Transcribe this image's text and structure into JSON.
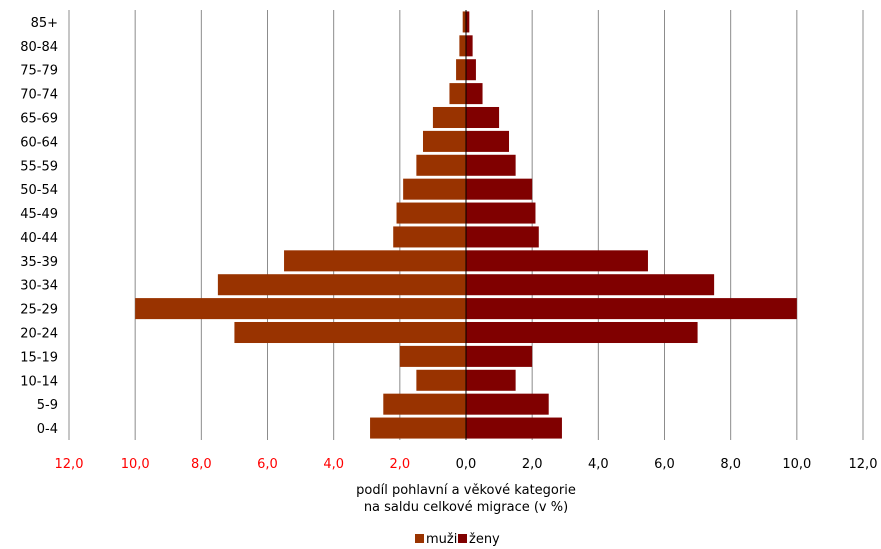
{
  "chart_data": {
    "type": "bar",
    "orientation": "horizontal",
    "layout": "population-pyramid",
    "categories": [
      "0-4",
      "5-9",
      "10-14",
      "15-19",
      "20-24",
      "25-29",
      "30-34",
      "35-39",
      "40-44",
      "45-49",
      "50-54",
      "55-59",
      "60-64",
      "65-69",
      "70-74",
      "75-79",
      "80-84",
      "85+"
    ],
    "series": [
      {
        "name": "muži",
        "side": "left",
        "color": "#993300",
        "values": [
          2.9,
          2.5,
          1.5,
          2.0,
          7.0,
          10.0,
          7.5,
          5.5,
          2.2,
          2.1,
          1.9,
          1.5,
          1.3,
          1.0,
          0.5,
          0.3,
          0.2,
          0.1
        ]
      },
      {
        "name": "ženy",
        "side": "right",
        "color": "#800000",
        "values": [
          2.9,
          2.5,
          1.5,
          2.0,
          7.0,
          10.0,
          7.5,
          5.5,
          2.2,
          2.1,
          2.0,
          1.5,
          1.3,
          1.0,
          0.5,
          0.3,
          0.2,
          0.1
        ]
      }
    ],
    "xlabel": "podíl pohlavní a věkové kategorie\nna saldu celkové migrace (v %)",
    "xlabel_lines": [
      "podíl pohlavní a věkové kategorie",
      "na saldu celkové migrace (v %)"
    ],
    "xlim": [
      -12,
      12
    ],
    "x_ticks": [
      {
        "value": -12,
        "label": "12,0"
      },
      {
        "value": -10,
        "label": "10,0"
      },
      {
        "value": -8,
        "label": "8,0"
      },
      {
        "value": -6,
        "label": "6,0"
      },
      {
        "value": -4,
        "label": "4,0"
      },
      {
        "value": -2,
        "label": "2,0"
      },
      {
        "value": 0,
        "label": "0,0"
      },
      {
        "value": 2,
        "label": "2,0"
      },
      {
        "value": 4,
        "label": "4,0"
      },
      {
        "value": 6,
        "label": "6,0"
      },
      {
        "value": 8,
        "label": "8,0"
      },
      {
        "value": 10,
        "label": "10,0"
      },
      {
        "value": 12,
        "label": "12,0"
      }
    ],
    "negative_tick_color": "#ff0000",
    "positive_tick_color": "#000000",
    "grid": "vertical",
    "legend_position": "bottom"
  }
}
